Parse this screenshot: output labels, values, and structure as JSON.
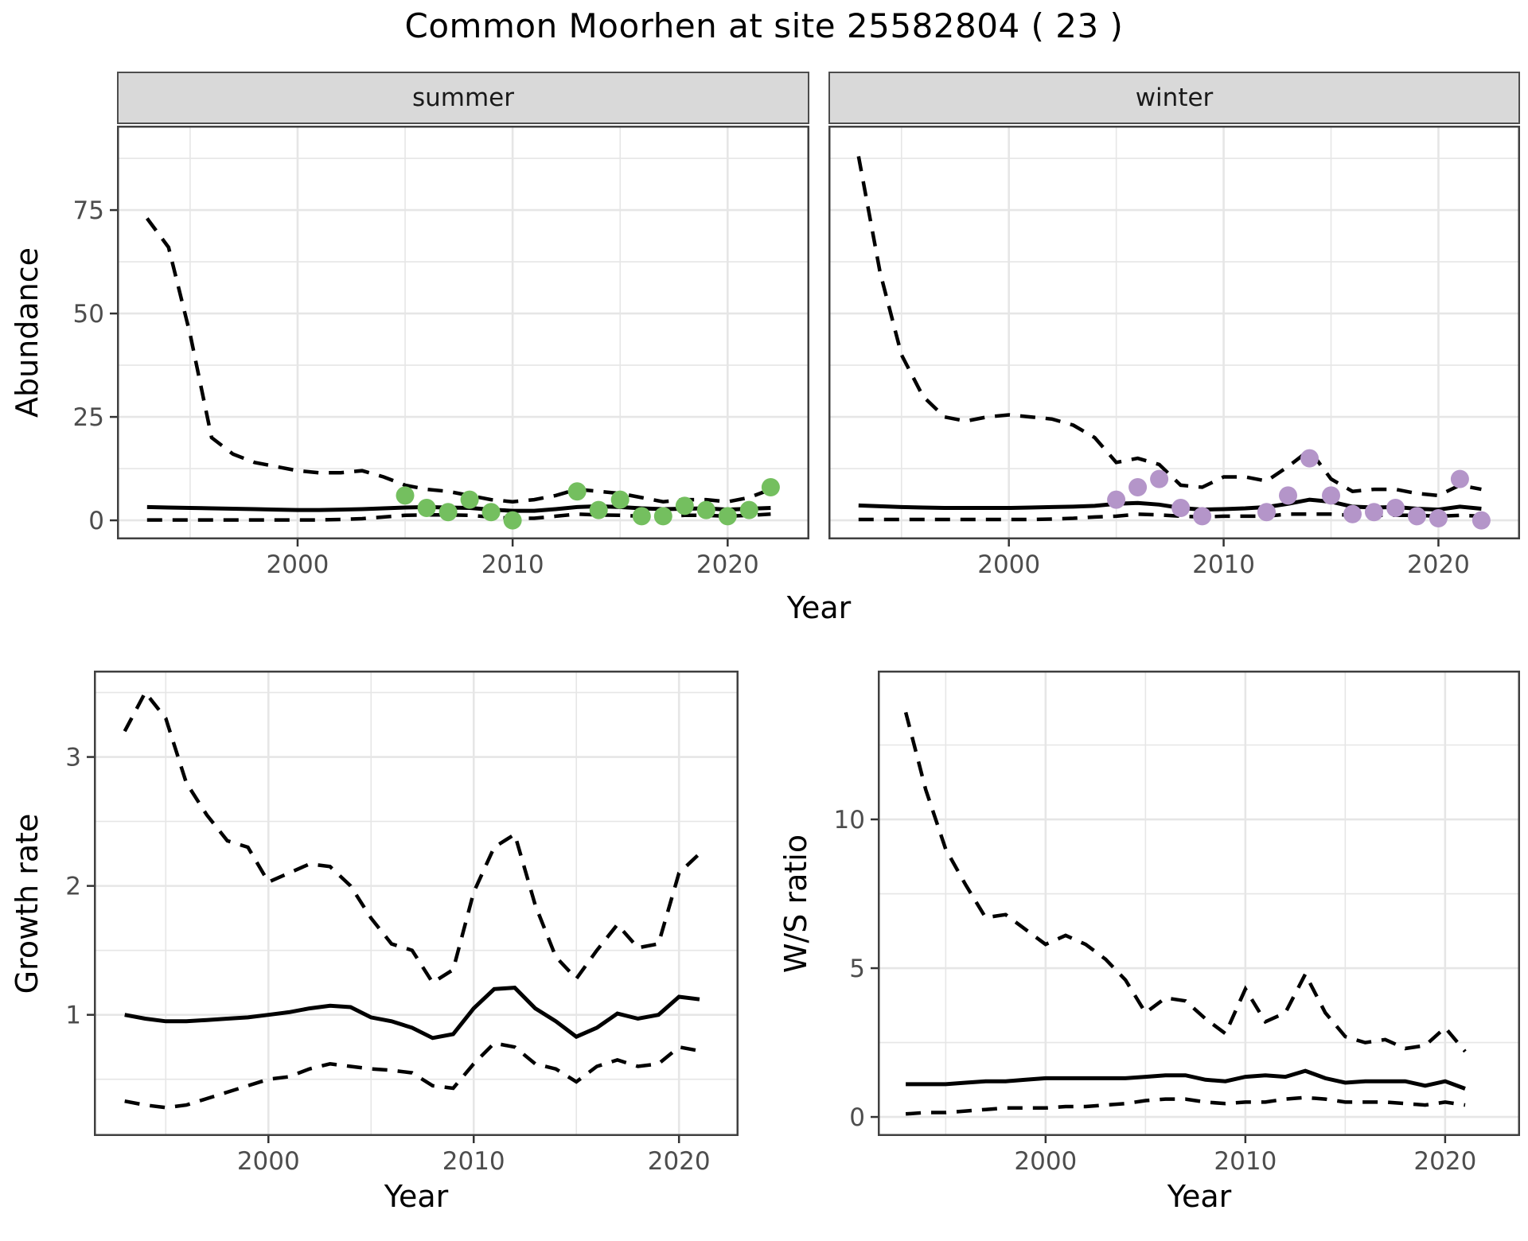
{
  "title": "Common Moorhen at site 25582804 ( 23 )",
  "axes": {
    "abundance_label": "Abundance",
    "growth_label": "Growth rate",
    "ws_label": "W/S ratio",
    "year_label": "Year"
  },
  "facets": {
    "summer": "summer",
    "winter": "winter"
  },
  "colors": {
    "summer_point": "#74BF5F",
    "winter_point": "#B495C9",
    "line": "#000000",
    "strip_fill": "#D9D9D9",
    "grid": "#E6E6E6",
    "panel_border": "#404040",
    "tick_text": "#4D4D4D"
  },
  "chart_data": [
    {
      "id": "abundance-summer",
      "type": "line",
      "facet": "summer",
      "title": "summer",
      "xlabel": "Year",
      "ylabel": "Abundance",
      "grid": true,
      "legend": "none",
      "xlim": [
        1991.6,
        2023.8
      ],
      "ylim": [
        -4.6,
        95.4
      ],
      "xticks": [
        2000,
        2010,
        2020
      ],
      "yticks": [
        0,
        25,
        50,
        75
      ],
      "x": [
        1993,
        1994,
        1995,
        1996,
        1997,
        1998,
        1999,
        2000,
        2001,
        2002,
        2003,
        2004,
        2005,
        2006,
        2007,
        2008,
        2009,
        2010,
        2011,
        2012,
        2013,
        2014,
        2015,
        2016,
        2017,
        2018,
        2019,
        2020,
        2021,
        2022
      ],
      "series": [
        {
          "name": "upper_ci",
          "style": "dashed",
          "values": [
            73,
            66,
            45,
            20,
            16,
            14,
            13,
            12,
            11.5,
            11.5,
            12,
            10.5,
            8.5,
            7.5,
            7,
            6,
            5,
            4.5,
            5,
            6,
            7.5,
            7,
            6.5,
            5.5,
            4.5,
            5,
            5,
            4.5,
            5.5,
            7.5
          ]
        },
        {
          "name": "median",
          "style": "solid",
          "values": [
            3.2,
            3.1,
            3.0,
            2.9,
            2.8,
            2.7,
            2.6,
            2.5,
            2.5,
            2.6,
            2.7,
            2.9,
            3.1,
            3.2,
            3.1,
            3.0,
            2.6,
            2.3,
            2.3,
            2.7,
            3.2,
            3.4,
            3.2,
            2.9,
            2.7,
            2.8,
            2.9,
            2.6,
            2.8,
            3.0
          ]
        },
        {
          "name": "lower_ci",
          "style": "dashed",
          "values": [
            0.1,
            0.1,
            0.1,
            0.1,
            0.1,
            0.1,
            0.1,
            0.1,
            0.1,
            0.2,
            0.4,
            0.8,
            1.2,
            1.3,
            1.3,
            1.2,
            0.8,
            0.5,
            0.5,
            1.0,
            1.5,
            1.3,
            1.2,
            1.0,
            1.0,
            1.2,
            1.2,
            1.0,
            1.2,
            1.5
          ]
        }
      ],
      "points": {
        "name": "observed_counts",
        "color": "#74BF5F",
        "x": [
          2005,
          2006,
          2007,
          2008,
          2009,
          2010,
          2013,
          2014,
          2015,
          2016,
          2017,
          2018,
          2019,
          2020,
          2021,
          2022
        ],
        "y": [
          6,
          3,
          2,
          5,
          2,
          0,
          7,
          2.5,
          5,
          1,
          1,
          3.5,
          2.5,
          1,
          2.5,
          8
        ]
      }
    },
    {
      "id": "abundance-winter",
      "type": "line",
      "facet": "winter",
      "title": "winter",
      "xlabel": "Year",
      "ylabel": "Abundance",
      "grid": true,
      "legend": "none",
      "xlim": [
        1991.6,
        2023.8
      ],
      "ylim": [
        -4.6,
        95.4
      ],
      "xticks": [
        2000,
        2010,
        2020
      ],
      "yticks": [
        0,
        25,
        50,
        75
      ],
      "x": [
        1993,
        1994,
        1995,
        1996,
        1997,
        1998,
        1999,
        2000,
        2001,
        2002,
        2003,
        2004,
        2005,
        2006,
        2007,
        2008,
        2009,
        2010,
        2011,
        2012,
        2013,
        2014,
        2015,
        2016,
        2017,
        2018,
        2019,
        2020,
        2021,
        2022
      ],
      "series": [
        {
          "name": "upper_ci",
          "style": "dashed",
          "values": [
            88,
            60,
            40,
            30,
            25,
            24,
            25,
            25.5,
            25,
            24.5,
            23,
            20,
            14,
            15,
            13.5,
            8.5,
            8,
            10.5,
            10.5,
            9.5,
            13,
            17,
            10,
            7,
            7.5,
            7.5,
            6.5,
            6,
            8.5,
            7.5
          ]
        },
        {
          "name": "median",
          "style": "solid",
          "values": [
            3.6,
            3.4,
            3.2,
            3.1,
            3.0,
            3.0,
            3.0,
            3.0,
            3.1,
            3.2,
            3.3,
            3.5,
            4.0,
            4.2,
            3.8,
            3.0,
            2.6,
            2.7,
            2.9,
            3.2,
            4.0,
            5.0,
            4.5,
            3.3,
            3.1,
            3.2,
            2.8,
            2.6,
            3.3,
            2.8
          ]
        },
        {
          "name": "lower_ci",
          "style": "dashed",
          "values": [
            0.2,
            0.2,
            0.2,
            0.2,
            0.2,
            0.2,
            0.2,
            0.2,
            0.2,
            0.3,
            0.5,
            0.8,
            1.0,
            1.5,
            1.3,
            1.0,
            0.8,
            1.0,
            1.0,
            1.0,
            1.5,
            1.5,
            1.5,
            1.2,
            1.2,
            1.2,
            1.2,
            1.0,
            1.2,
            1.0
          ]
        }
      ],
      "points": {
        "name": "observed_counts",
        "color": "#B495C9",
        "x": [
          2005,
          2006,
          2007,
          2008,
          2009,
          2012,
          2013,
          2014,
          2015,
          2016,
          2017,
          2018,
          2019,
          2020,
          2021,
          2022
        ],
        "y": [
          5,
          8,
          10,
          3,
          1,
          2,
          6,
          15,
          6,
          1.5,
          2,
          3,
          1,
          0.5,
          10,
          0
        ]
      }
    },
    {
      "id": "growth-rate",
      "type": "line",
      "title": "",
      "xlabel": "Year",
      "ylabel": "Growth rate",
      "grid": true,
      "legend": "none",
      "xlim": [
        1991.5,
        2022.9
      ],
      "ylim": [
        0.06,
        3.67
      ],
      "xticks": [
        2000,
        2010,
        2020
      ],
      "yticks": [
        1,
        2,
        3
      ],
      "x": [
        1993,
        1994,
        1995,
        1996,
        1997,
        1998,
        1999,
        2000,
        2001,
        2002,
        2003,
        2004,
        2005,
        2006,
        2007,
        2008,
        2009,
        2010,
        2011,
        2012,
        2013,
        2014,
        2015,
        2016,
        2017,
        2018,
        2019,
        2020,
        2021
      ],
      "series": [
        {
          "name": "upper_ci",
          "style": "dashed",
          "values": [
            3.2,
            3.5,
            3.3,
            2.8,
            2.55,
            2.35,
            2.3,
            2.03,
            2.1,
            2.17,
            2.15,
            2.0,
            1.75,
            1.55,
            1.5,
            1.25,
            1.35,
            1.95,
            2.3,
            2.4,
            1.85,
            1.45,
            1.28,
            1.5,
            1.7,
            1.52,
            1.55,
            2.1,
            2.25
          ]
        },
        {
          "name": "median",
          "style": "solid",
          "values": [
            1.0,
            0.97,
            0.95,
            0.95,
            0.96,
            0.97,
            0.98,
            1.0,
            1.02,
            1.05,
            1.07,
            1.06,
            0.98,
            0.95,
            0.9,
            0.82,
            0.85,
            1.05,
            1.2,
            1.21,
            1.05,
            0.95,
            0.83,
            0.9,
            1.01,
            0.97,
            1.0,
            1.14,
            1.12
          ]
        },
        {
          "name": "lower_ci",
          "style": "dashed",
          "values": [
            0.33,
            0.3,
            0.28,
            0.3,
            0.35,
            0.4,
            0.45,
            0.5,
            0.52,
            0.58,
            0.62,
            0.6,
            0.58,
            0.57,
            0.55,
            0.45,
            0.43,
            0.62,
            0.78,
            0.75,
            0.62,
            0.58,
            0.48,
            0.6,
            0.65,
            0.6,
            0.62,
            0.75,
            0.72
          ]
        }
      ]
    },
    {
      "id": "ws-ratio",
      "type": "line",
      "title": "",
      "xlabel": "Year",
      "ylabel": "W/S ratio",
      "grid": true,
      "legend": "none",
      "xlim": [
        1991.6,
        2023.75
      ],
      "ylim": [
        -0.64,
        15.0
      ],
      "xticks": [
        2000,
        2010,
        2020
      ],
      "yticks": [
        0,
        5,
        10
      ],
      "x": [
        1993,
        1994,
        1995,
        1996,
        1997,
        1998,
        1999,
        2000,
        2001,
        2002,
        2003,
        2004,
        2005,
        2006,
        2007,
        2008,
        2009,
        2010,
        2011,
        2012,
        2013,
        2014,
        2015,
        2016,
        2017,
        2018,
        2019,
        2020,
        2021
      ],
      "series": [
        {
          "name": "upper_ci",
          "style": "dashed",
          "values": [
            13.6,
            11,
            9,
            7.8,
            6.7,
            6.8,
            6.3,
            5.8,
            6.1,
            5.8,
            5.3,
            4.6,
            3.5,
            4.0,
            3.9,
            3.3,
            2.8,
            4.3,
            3.2,
            3.5,
            4.8,
            3.5,
            2.7,
            2.5,
            2.6,
            2.3,
            2.4,
            3.0,
            2.2
          ]
        },
        {
          "name": "median",
          "style": "solid",
          "values": [
            1.1,
            1.1,
            1.1,
            1.15,
            1.2,
            1.2,
            1.25,
            1.3,
            1.3,
            1.3,
            1.3,
            1.3,
            1.35,
            1.4,
            1.4,
            1.25,
            1.2,
            1.35,
            1.4,
            1.35,
            1.55,
            1.3,
            1.15,
            1.2,
            1.2,
            1.2,
            1.05,
            1.2,
            0.95
          ]
        },
        {
          "name": "lower_ci",
          "style": "dashed",
          "values": [
            0.1,
            0.15,
            0.15,
            0.2,
            0.25,
            0.3,
            0.3,
            0.3,
            0.35,
            0.35,
            0.4,
            0.45,
            0.55,
            0.6,
            0.6,
            0.5,
            0.45,
            0.5,
            0.5,
            0.6,
            0.65,
            0.6,
            0.5,
            0.5,
            0.5,
            0.45,
            0.4,
            0.5,
            0.4
          ]
        }
      ]
    }
  ]
}
